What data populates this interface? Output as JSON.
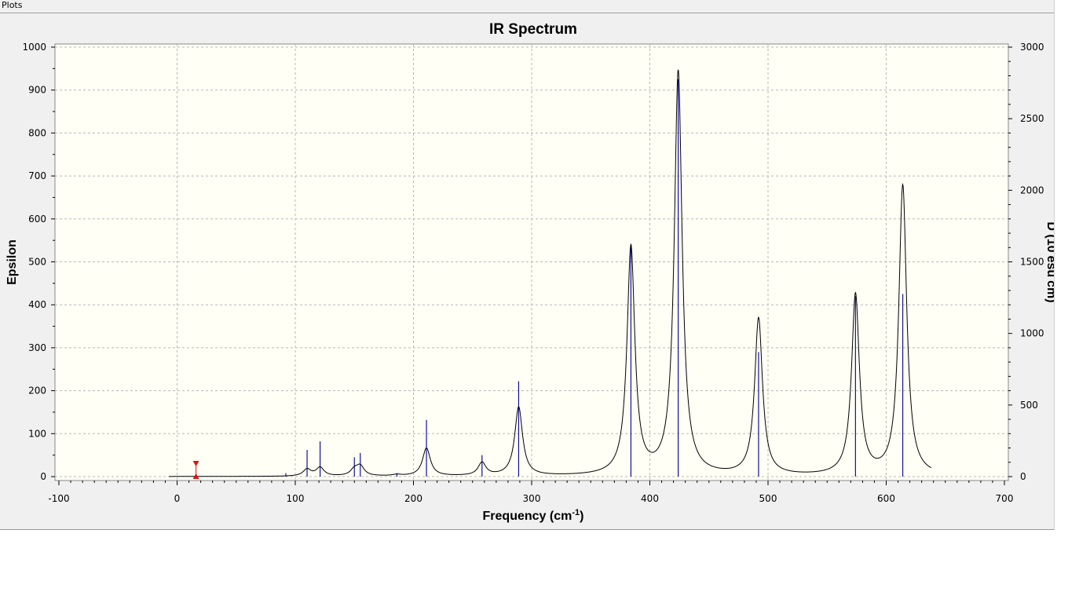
{
  "window": {
    "title": "Plots"
  },
  "chart_data": {
    "type": "line",
    "title": "IR Spectrum",
    "xlabel": "Frequency (cm",
    "xlabel_sup": "-1",
    "xlabel_close": ")",
    "ylabel": "Epsilon",
    "y2label": "D (10",
    "y2label_rest": "esu",
    "y2label_tail": "cm)",
    "xlim": [
      -100,
      700
    ],
    "ylim": [
      0,
      1000
    ],
    "y2lim": [
      0,
      3000
    ],
    "x_ticks": [
      -100,
      0,
      100,
      200,
      300,
      400,
      500,
      600,
      700
    ],
    "y_ticks": [
      0,
      100,
      200,
      300,
      400,
      500,
      600,
      700,
      800,
      900,
      1000
    ],
    "y2_ticks": [
      0,
      500,
      1000,
      1500,
      2000,
      2500,
      3000
    ],
    "grid": true,
    "plot_background": "#fffff5",
    "curve_color": "#000000",
    "stick_color": "#1010a0",
    "marker_color": "#dd1111",
    "curve_range": [
      -7,
      638
    ],
    "half_width": 4,
    "peaks": [
      {
        "x": 110,
        "epsilon": 16
      },
      {
        "x": 121,
        "epsilon": 20
      },
      {
        "x": 150,
        "epsilon": 14
      },
      {
        "x": 155,
        "epsilon": 22
      },
      {
        "x": 186,
        "epsilon": 3
      },
      {
        "x": 211,
        "epsilon": 65
      },
      {
        "x": 258,
        "epsilon": 30
      },
      {
        "x": 289,
        "epsilon": 160
      },
      {
        "x": 384,
        "epsilon": 530
      },
      {
        "x": 424,
        "epsilon": 940
      },
      {
        "x": 492,
        "epsilon": 365
      },
      {
        "x": 574,
        "epsilon": 420
      },
      {
        "x": 614,
        "epsilon": 675
      }
    ],
    "sticks": [
      {
        "x": 92,
        "intensity": 8
      },
      {
        "x": 110,
        "intensity": 62
      },
      {
        "x": 121,
        "intensity": 82
      },
      {
        "x": 150,
        "intensity": 45
      },
      {
        "x": 155,
        "intensity": 55
      },
      {
        "x": 186,
        "intensity": 8
      },
      {
        "x": 211,
        "intensity": 132
      },
      {
        "x": 258,
        "intensity": 50
      },
      {
        "x": 289,
        "intensity": 222
      },
      {
        "x": 384,
        "intensity": 535
      },
      {
        "x": 424,
        "intensity": 925
      },
      {
        "x": 492,
        "intensity": 290
      },
      {
        "x": 574,
        "intensity": 420
      },
      {
        "x": 614,
        "intensity": 425
      }
    ],
    "marker_x": 16
  }
}
